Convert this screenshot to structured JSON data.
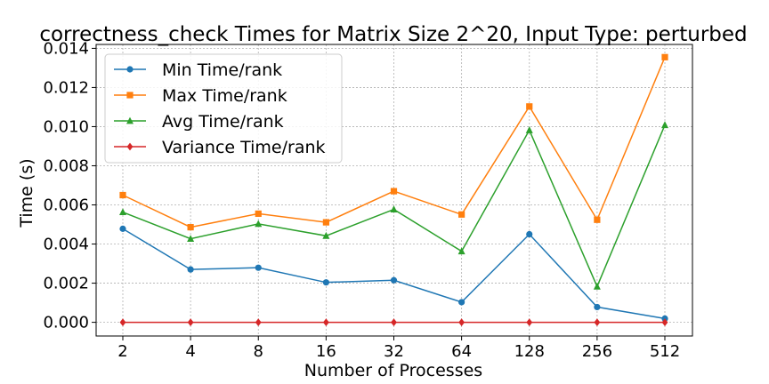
{
  "chart_data": {
    "type": "line",
    "title": "correctness_check Times for Matrix Size 2^20, Input Type: perturbed",
    "xlabel": "Number of Processes",
    "ylabel": "Time (s)",
    "categories": [
      "2",
      "4",
      "8",
      "16",
      "32",
      "64",
      "128",
      "256",
      "512"
    ],
    "yticks": [
      "0.000",
      "0.002",
      "0.004",
      "0.006",
      "0.008",
      "0.010",
      "0.012",
      "0.014"
    ],
    "ylim": [
      -0.0007,
      0.0142
    ],
    "grid": true,
    "legend_position": "top-left",
    "series": [
      {
        "name": "Min Time/rank",
        "color": "#1f77b4",
        "marker": "circle",
        "values": [
          0.00478,
          0.0027,
          0.00279,
          0.00204,
          0.00215,
          0.00103,
          0.0045,
          0.00078,
          0.00019
        ]
      },
      {
        "name": "Max Time/rank",
        "color": "#ff7f0e",
        "marker": "square",
        "values": [
          0.0065,
          0.00486,
          0.00555,
          0.00511,
          0.0067,
          0.00551,
          0.01103,
          0.00524,
          0.01355
        ]
      },
      {
        "name": "Avg Time/rank",
        "color": "#2ca02c",
        "marker": "triangle",
        "values": [
          0.00563,
          0.00427,
          0.00503,
          0.00442,
          0.00577,
          0.00363,
          0.00982,
          0.00183,
          0.01008
        ]
      },
      {
        "name": "Variance Time/rank",
        "color": "#d62728",
        "marker": "diamond",
        "values": [
          0.0,
          0.0,
          0.0,
          0.0,
          0.0,
          0.0,
          0.0,
          0.0,
          0.0
        ]
      }
    ]
  }
}
